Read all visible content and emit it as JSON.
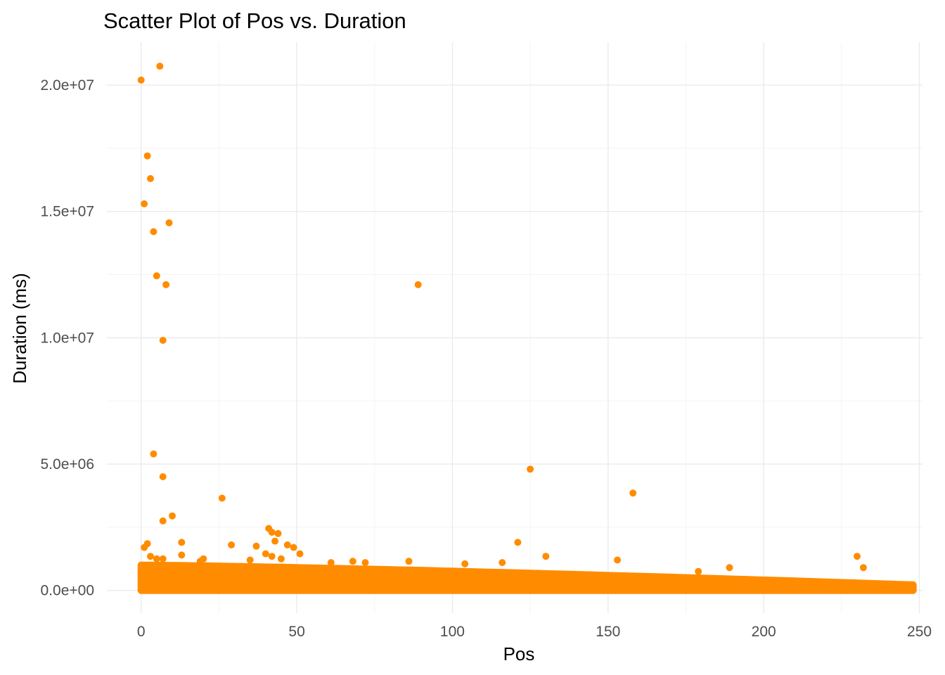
{
  "chart_data": {
    "type": "scatter",
    "title": "Scatter Plot of Pos vs. Duration",
    "xlabel": "Pos",
    "ylabel": "Duration (ms)",
    "xlim": [
      -11,
      251
    ],
    "ylim": [
      -900000,
      21700000
    ],
    "x_ticks": [
      0,
      50,
      100,
      150,
      200,
      250
    ],
    "x_tick_labels": [
      "0",
      "50",
      "100",
      "150",
      "200",
      "250"
    ],
    "y_ticks": [
      0,
      5000000,
      10000000,
      15000000,
      20000000
    ],
    "y_tick_labels": [
      "0.0e+00",
      "5.0e+06",
      "1.0e+07",
      "1.5e+07",
      "2.0e+07"
    ],
    "grid": true,
    "point_color": "#FF8C00",
    "background": "#FFFFFF",
    "series": [
      {
        "x": [
          0,
          6,
          2,
          3,
          1,
          9,
          4,
          5,
          8,
          7,
          89,
          4,
          125,
          7,
          158,
          26,
          10,
          7,
          41,
          42,
          44,
          43,
          37,
          121,
          13,
          29,
          2,
          1,
          47,
          49,
          3,
          51,
          130,
          40,
          42,
          35,
          45,
          20,
          230,
          153,
          13,
          5,
          7,
          86,
          116,
          104,
          232,
          189,
          68,
          72,
          179,
          61,
          19
        ],
        "y": [
          20200000,
          20750000,
          17200000,
          16300000,
          15300000,
          14550000,
          14200000,
          12450000,
          12100000,
          9900000,
          12100000,
          5400000,
          4800000,
          4500000,
          3850000,
          3650000,
          2950000,
          2750000,
          2450000,
          2300000,
          2250000,
          1950000,
          1750000,
          1900000,
          1900000,
          1800000,
          1850000,
          1700000,
          1800000,
          1700000,
          1350000,
          1450000,
          1350000,
          1450000,
          1350000,
          1200000,
          1250000,
          1250000,
          1350000,
          1200000,
          1400000,
          1250000,
          1250000,
          1150000,
          1100000,
          1050000,
          900000,
          900000,
          1150000,
          1100000,
          750000,
          1100000,
          1150000
        ]
      }
    ],
    "dense_band": {
      "x_range": [
        0,
        248
      ],
      "y_low": 0,
      "y_high_start": 1000000,
      "y_high_end": 220000
    }
  }
}
